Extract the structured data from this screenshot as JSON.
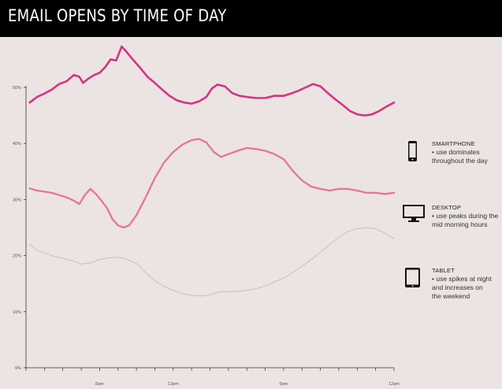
{
  "header": {
    "title": "EMAIL OPENS BY TIME OF DAY"
  },
  "colors": {
    "background": "#ebe4e2",
    "header_bg": "#000000",
    "smartphone": "#d63384",
    "desktop": "#e7739f",
    "tablet": "#c2bcba",
    "axis": "#333333"
  },
  "chart_data": {
    "type": "line",
    "title": "EMAIL OPENS BY TIME OF DAY",
    "xlabel": "",
    "ylabel": "",
    "x_tick_labels": [
      "8am",
      "12pm",
      "6pm",
      "12am"
    ],
    "x_tick_hours": [
      8,
      12,
      18,
      24
    ],
    "y_tick_labels": [
      "0%",
      "10%",
      "20%",
      "30%",
      "40%",
      "50%"
    ],
    "ylim": [
      0,
      50
    ],
    "xlim": [
      4,
      24
    ],
    "grid": false,
    "legend_position": "right",
    "series": [
      {
        "name": "SMARTPHONE",
        "key": "smartphone",
        "points": [
          [
            4.2,
            47.3
          ],
          [
            4.6,
            48.3
          ],
          [
            5.0,
            48.9
          ],
          [
            5.4,
            49.6
          ],
          [
            5.8,
            50.6
          ],
          [
            6.2,
            51.1
          ],
          [
            6.6,
            52.2
          ],
          [
            6.9,
            51.9
          ],
          [
            7.1,
            50.8
          ],
          [
            7.4,
            51.6
          ],
          [
            7.7,
            52.2
          ],
          [
            8.0,
            52.6
          ],
          [
            8.3,
            53.6
          ],
          [
            8.6,
            55.0
          ],
          [
            8.9,
            54.8
          ],
          [
            9.2,
            57.3
          ],
          [
            9.5,
            56.2
          ],
          [
            9.8,
            55.0
          ],
          [
            10.2,
            53.5
          ],
          [
            10.6,
            51.9
          ],
          [
            11.0,
            50.8
          ],
          [
            11.4,
            49.6
          ],
          [
            11.8,
            48.5
          ],
          [
            12.2,
            47.7
          ],
          [
            12.6,
            47.3
          ],
          [
            13.0,
            47.1
          ],
          [
            13.4,
            47.5
          ],
          [
            13.8,
            48.3
          ],
          [
            14.1,
            49.8
          ],
          [
            14.4,
            50.5
          ],
          [
            14.8,
            50.2
          ],
          [
            15.2,
            49.0
          ],
          [
            15.6,
            48.5
          ],
          [
            16.0,
            48.3
          ],
          [
            16.5,
            48.1
          ],
          [
            17.0,
            48.1
          ],
          [
            17.5,
            48.5
          ],
          [
            18.0,
            48.5
          ],
          [
            18.4,
            48.9
          ],
          [
            18.8,
            49.4
          ],
          [
            19.2,
            50.0
          ],
          [
            19.6,
            50.6
          ],
          [
            20.0,
            50.2
          ],
          [
            20.4,
            49.0
          ],
          [
            20.8,
            47.9
          ],
          [
            21.2,
            46.9
          ],
          [
            21.6,
            45.8
          ],
          [
            22.0,
            45.2
          ],
          [
            22.4,
            45.0
          ],
          [
            22.8,
            45.2
          ],
          [
            23.2,
            45.8
          ],
          [
            23.6,
            46.6
          ],
          [
            24.0,
            47.3
          ]
        ]
      },
      {
        "name": "DESKTOP",
        "key": "desktop",
        "points": [
          [
            4.2,
            32.0
          ],
          [
            4.6,
            31.6
          ],
          [
            5.0,
            31.4
          ],
          [
            5.4,
            31.2
          ],
          [
            5.8,
            30.8
          ],
          [
            6.2,
            30.4
          ],
          [
            6.6,
            29.8
          ],
          [
            6.9,
            29.2
          ],
          [
            7.2,
            30.8
          ],
          [
            7.5,
            31.9
          ],
          [
            7.8,
            31.0
          ],
          [
            8.1,
            29.8
          ],
          [
            8.4,
            28.5
          ],
          [
            8.7,
            26.5
          ],
          [
            9.0,
            25.4
          ],
          [
            9.3,
            25.0
          ],
          [
            9.6,
            25.4
          ],
          [
            10.0,
            27.2
          ],
          [
            10.5,
            30.4
          ],
          [
            11.0,
            33.8
          ],
          [
            11.5,
            36.6
          ],
          [
            12.0,
            38.5
          ],
          [
            12.5,
            39.8
          ],
          [
            13.0,
            40.6
          ],
          [
            13.4,
            40.8
          ],
          [
            13.8,
            40.2
          ],
          [
            14.2,
            38.5
          ],
          [
            14.6,
            37.6
          ],
          [
            15.0,
            38.1
          ],
          [
            15.5,
            38.7
          ],
          [
            16.0,
            39.2
          ],
          [
            16.5,
            39.0
          ],
          [
            17.0,
            38.7
          ],
          [
            17.5,
            38.1
          ],
          [
            18.0,
            37.2
          ],
          [
            18.5,
            35.1
          ],
          [
            19.0,
            33.4
          ],
          [
            19.5,
            32.3
          ],
          [
            20.0,
            31.9
          ],
          [
            20.5,
            31.6
          ],
          [
            21.0,
            31.9
          ],
          [
            21.5,
            31.9
          ],
          [
            22.0,
            31.6
          ],
          [
            22.5,
            31.2
          ],
          [
            23.0,
            31.2
          ],
          [
            23.5,
            31.0
          ],
          [
            24.0,
            31.2
          ]
        ]
      },
      {
        "name": "TABLET",
        "key": "tablet",
        "points": [
          [
            4.2,
            22.0
          ],
          [
            4.6,
            21.0
          ],
          [
            5.0,
            20.5
          ],
          [
            5.5,
            19.9
          ],
          [
            6.0,
            19.5
          ],
          [
            6.5,
            19.1
          ],
          [
            7.0,
            18.5
          ],
          [
            7.5,
            18.7
          ],
          [
            8.0,
            19.3
          ],
          [
            8.5,
            19.6
          ],
          [
            9.0,
            19.7
          ],
          [
            9.5,
            19.3
          ],
          [
            10.0,
            18.6
          ],
          [
            10.5,
            17.0
          ],
          [
            11.0,
            15.5
          ],
          [
            11.5,
            14.5
          ],
          [
            12.0,
            13.8
          ],
          [
            12.5,
            13.2
          ],
          [
            13.0,
            12.9
          ],
          [
            13.5,
            12.8
          ],
          [
            14.0,
            13.0
          ],
          [
            14.5,
            13.5
          ],
          [
            15.0,
            13.6
          ],
          [
            15.5,
            13.6
          ],
          [
            16.0,
            13.8
          ],
          [
            16.5,
            14.1
          ],
          [
            17.0,
            14.6
          ],
          [
            17.5,
            15.3
          ],
          [
            18.0,
            16.0
          ],
          [
            18.5,
            17.0
          ],
          [
            19.0,
            18.1
          ],
          [
            19.5,
            19.3
          ],
          [
            20.0,
            20.6
          ],
          [
            20.5,
            22.0
          ],
          [
            21.0,
            23.3
          ],
          [
            21.5,
            24.3
          ],
          [
            22.0,
            24.8
          ],
          [
            22.5,
            25.0
          ],
          [
            23.0,
            24.8
          ],
          [
            23.5,
            24.0
          ],
          [
            24.0,
            23.0
          ]
        ]
      }
    ]
  },
  "legend": [
    {
      "key": "smartphone",
      "name": "SMARTPHONE",
      "icon": "smartphone-icon",
      "text": "use dominates\nthroughout the day"
    },
    {
      "key": "desktop",
      "name": "DESKTOP",
      "icon": "desktop-monitor-icon",
      "text": "use peaks during the\nmid morning hours"
    },
    {
      "key": "tablet",
      "name": "TABLET",
      "icon": "tablet-icon",
      "text": "use spikes at night\nand increases on\nthe weekend"
    }
  ]
}
